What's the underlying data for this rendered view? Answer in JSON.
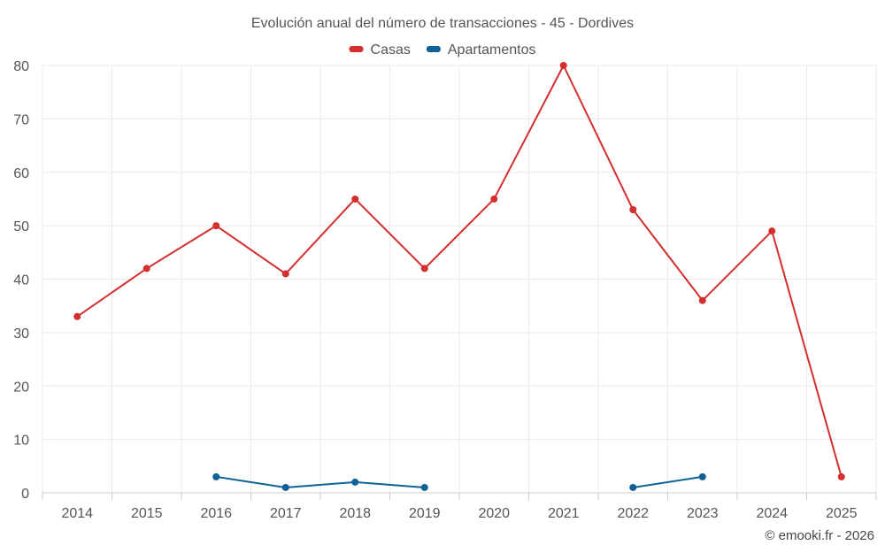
{
  "chart_data": {
    "type": "line",
    "title": "Evolución anual del número de transacciones - 45 - Dordives",
    "categories": [
      "2014",
      "2015",
      "2016",
      "2017",
      "2018",
      "2019",
      "2020",
      "2021",
      "2022",
      "2023",
      "2024",
      "2025"
    ],
    "ylim": [
      0,
      80
    ],
    "yticks": [
      0,
      10,
      20,
      30,
      40,
      50,
      60,
      70,
      80
    ],
    "ytick_labels": [
      "0",
      "10",
      "20",
      "30",
      "40",
      "50",
      "60",
      "70",
      "80"
    ],
    "grid": true,
    "legend_position": "top-center",
    "series": [
      {
        "name": "Casas",
        "color": "#d32f2f",
        "values": [
          33,
          42,
          50,
          41,
          55,
          42,
          55,
          80,
          53,
          36,
          49,
          3
        ]
      },
      {
        "name": "Apartamentos",
        "color": "#0f6197",
        "values": [
          null,
          null,
          3,
          1,
          2,
          1,
          null,
          null,
          1,
          3,
          null,
          null
        ]
      }
    ],
    "credit": "© emooki.fr - 2026"
  }
}
